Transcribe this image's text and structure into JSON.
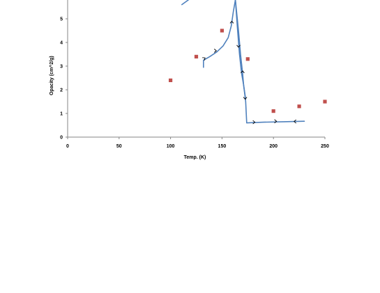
{
  "chart_data": {
    "type": "scatter",
    "xlabel": "Temp. (K)",
    "ylabel": "Opacity (cm^2/g)",
    "xlim": [
      0,
      250
    ],
    "ylim": [
      0,
      5.5
    ],
    "x_ticks": [
      "0",
      "50",
      "100",
      "150",
      "200",
      "250"
    ],
    "y_ticks": [
      "0",
      "1",
      "2",
      "3",
      "4",
      "5"
    ],
    "grid": false,
    "legend": "none",
    "series": [
      {
        "kind": "markers",
        "color": "#c0504d",
        "points": [
          [
            100,
            2.4
          ],
          [
            125,
            3.4
          ],
          [
            150,
            4.5
          ],
          [
            175,
            3.3
          ],
          [
            200,
            1.1
          ],
          [
            225,
            1.3
          ],
          [
            250,
            1.5
          ]
        ]
      },
      {
        "kind": "line",
        "color": "#4f81bd",
        "segments": [
          [
            [
              111,
              5.6
            ],
            [
              119,
              5.85
            ]
          ],
          [
            [
              132,
              2.95
            ],
            [
              132,
              3.25
            ],
            [
              138,
              3.4
            ],
            [
              145,
              3.6
            ],
            [
              151,
              3.85
            ],
            [
              156,
              4.2
            ],
            [
              159,
              4.7
            ],
            [
              161,
              5.3
            ],
            [
              163,
              5.8
            ]
          ],
          [
            [
              163,
              5.8
            ],
            [
              166,
              4.5
            ],
            [
              168,
              3.5
            ],
            [
              170,
              2.7
            ],
            [
              171,
              2.2
            ],
            [
              173,
              1.5
            ],
            [
              174,
              0.6
            ],
            [
              190,
              0.63
            ],
            [
              210,
              0.65
            ],
            [
              230,
              0.67
            ]
          ],
          [
            [
              163,
              5.8
            ],
            [
              165,
              4.6
            ],
            [
              167,
              3.5
            ],
            [
              169,
              2.7
            ],
            [
              171,
              2.2
            ],
            [
              173,
              1.6
            ]
          ]
        ],
        "arrows": [
          {
            "at": [
              133.5,
              3.35
            ],
            "dir": "up-right"
          },
          {
            "at": [
              144.5,
              3.65
            ],
            "dir": "right"
          },
          {
            "at": [
              159.5,
              4.9
            ],
            "dir": "up"
          },
          {
            "at": [
              166,
              3.8
            ],
            "dir": "down"
          },
          {
            "at": [
              170,
              2.8
            ],
            "dir": "up"
          },
          {
            "at": [
              172.5,
              1.6
            ],
            "dir": "down"
          },
          {
            "at": [
              182,
              0.63
            ],
            "dir": "right"
          },
          {
            "at": [
              203,
              0.67
            ],
            "dir": "right"
          },
          {
            "at": [
              220,
              0.66
            ],
            "dir": "left"
          }
        ]
      }
    ]
  }
}
